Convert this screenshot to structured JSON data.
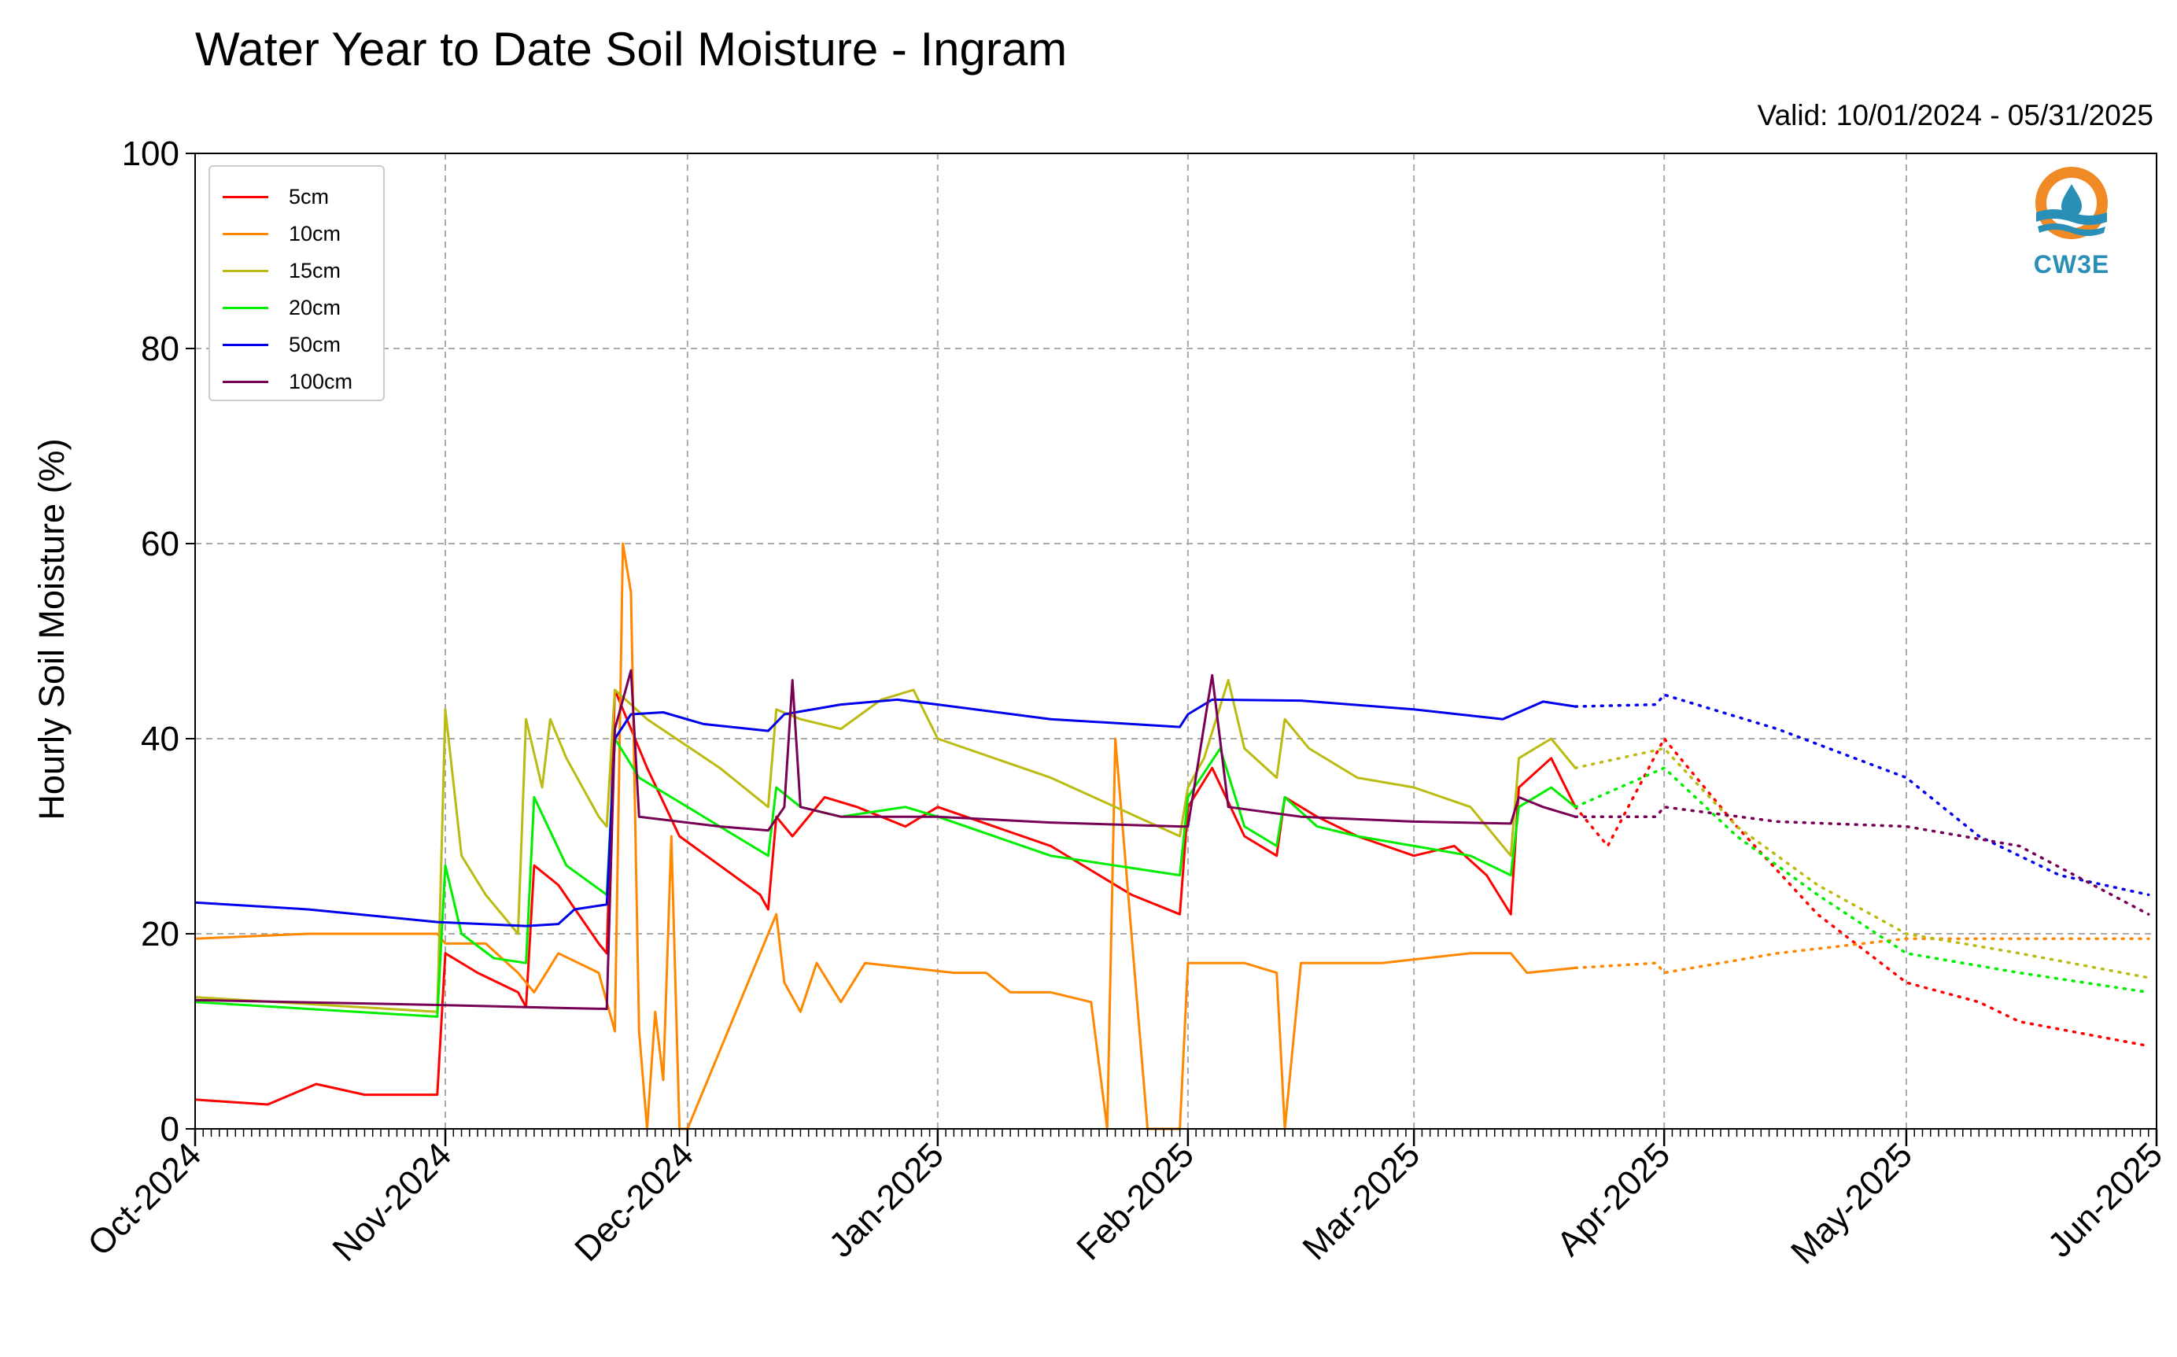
{
  "title": "Water Year to Date Soil Moisture - Ingram",
  "valid": "Valid: 10/01/2024 - 05/31/2025",
  "logo_text": "CW3E",
  "chart_data": {
    "type": "line",
    "title": "Water Year to Date Soil Moisture - Ingram",
    "xlabel": "",
    "ylabel": "Hourly Soil Moisture (%)",
    "ylim": [
      0,
      100
    ],
    "xlim": [
      "2024-10-01",
      "2025-06-01"
    ],
    "yticks": [
      0,
      20,
      40,
      60,
      80,
      100
    ],
    "xticks": [
      {
        "date": "2024-10-01",
        "label": "Oct-2024"
      },
      {
        "date": "2024-11-01",
        "label": "Nov-2024"
      },
      {
        "date": "2024-12-01",
        "label": "Dec-2024"
      },
      {
        "date": "2025-01-01",
        "label": "Jan-2025"
      },
      {
        "date": "2025-02-01",
        "label": "Feb-2025"
      },
      {
        "date": "2025-03-01",
        "label": "Mar-2025"
      },
      {
        "date": "2025-04-01",
        "label": "Apr-2025"
      },
      {
        "date": "2025-05-01",
        "label": "May-2025"
      },
      {
        "date": "2025-06-01",
        "label": "Jun-2025"
      }
    ],
    "grid": true,
    "legend_position": "top-left",
    "series": [
      {
        "name": "5cm",
        "color": "#ff0000",
        "observed": [
          [
            "2024-10-01",
            3
          ],
          [
            "2024-10-10",
            2.5
          ],
          [
            "2024-10-16",
            4.6
          ],
          [
            "2024-10-22",
            3.5
          ],
          [
            "2024-10-31",
            3.5
          ],
          [
            "2024-11-01",
            18
          ],
          [
            "2024-11-05",
            16
          ],
          [
            "2024-11-10",
            14
          ],
          [
            "2024-11-11",
            12.5
          ],
          [
            "2024-11-12",
            27
          ],
          [
            "2024-11-15",
            25
          ],
          [
            "2024-11-20",
            19
          ],
          [
            "2024-11-21",
            18
          ],
          [
            "2024-11-22",
            45
          ],
          [
            "2024-11-26",
            37
          ],
          [
            "2024-11-30",
            30
          ],
          [
            "2024-12-05",
            27
          ],
          [
            "2024-12-10",
            24
          ],
          [
            "2024-12-11",
            22.5
          ],
          [
            "2024-12-12",
            32
          ],
          [
            "2024-12-14",
            30
          ],
          [
            "2024-12-18",
            34
          ],
          [
            "2024-12-22",
            33
          ],
          [
            "2024-12-28",
            31
          ],
          [
            "2025-01-01",
            33
          ],
          [
            "2025-01-15",
            29
          ],
          [
            "2025-01-25",
            24
          ],
          [
            "2025-01-31",
            22
          ],
          [
            "2025-02-01",
            33
          ],
          [
            "2025-02-04",
            37
          ],
          [
            "2025-02-08",
            30
          ],
          [
            "2025-02-12",
            28
          ],
          [
            "2025-02-13",
            34
          ],
          [
            "2025-02-17",
            32
          ],
          [
            "2025-02-22",
            30
          ],
          [
            "2025-03-01",
            28
          ],
          [
            "2025-03-06",
            29
          ],
          [
            "2025-03-10",
            26
          ],
          [
            "2025-03-13",
            22
          ],
          [
            "2025-03-14",
            35
          ],
          [
            "2025-03-18",
            38
          ],
          [
            "2025-03-21",
            33
          ]
        ],
        "forecast": [
          [
            "2025-03-21",
            33
          ],
          [
            "2025-03-25",
            29
          ],
          [
            "2025-04-01",
            40
          ],
          [
            "2025-04-10",
            31
          ],
          [
            "2025-04-20",
            22
          ],
          [
            "2025-05-01",
            15
          ],
          [
            "2025-05-10",
            13
          ],
          [
            "2025-05-15",
            11
          ],
          [
            "2025-05-31",
            8.5
          ]
        ]
      },
      {
        "name": "10cm",
        "color": "#ff8800",
        "observed": [
          [
            "2024-10-01",
            19.5
          ],
          [
            "2024-10-15",
            20
          ],
          [
            "2024-10-31",
            20
          ],
          [
            "2024-11-01",
            19
          ],
          [
            "2024-11-06",
            19
          ],
          [
            "2024-11-10",
            16
          ],
          [
            "2024-11-12",
            14
          ],
          [
            "2024-11-15",
            18
          ],
          [
            "2024-11-20",
            16
          ],
          [
            "2024-11-22",
            10
          ],
          [
            "2024-11-23",
            60
          ],
          [
            "2024-11-24",
            55
          ],
          [
            "2024-11-25",
            10
          ],
          [
            "2024-11-26",
            0
          ],
          [
            "2024-11-27",
            12
          ],
          [
            "2024-11-28",
            5
          ],
          [
            "2024-11-29",
            30
          ],
          [
            "2024-11-30",
            0
          ],
          [
            "2024-12-01",
            0
          ],
          [
            "2024-12-12",
            22
          ],
          [
            "2024-12-13",
            15
          ],
          [
            "2024-12-15",
            12
          ],
          [
            "2024-12-17",
            17
          ],
          [
            "2024-12-20",
            13
          ],
          [
            "2024-12-23",
            17
          ],
          [
            "2025-01-03",
            16
          ],
          [
            "2025-01-07",
            16
          ],
          [
            "2025-01-10",
            14
          ],
          [
            "2025-01-15",
            14
          ],
          [
            "2025-01-20",
            13
          ],
          [
            "2025-01-22",
            0
          ],
          [
            "2025-01-23",
            40
          ],
          [
            "2025-01-25",
            20
          ],
          [
            "2025-01-27",
            0
          ],
          [
            "2025-01-31",
            0
          ],
          [
            "2025-02-01",
            17
          ],
          [
            "2025-02-08",
            17
          ],
          [
            "2025-02-12",
            16
          ],
          [
            "2025-02-13",
            0
          ],
          [
            "2025-02-15",
            17
          ],
          [
            "2025-02-25",
            17
          ],
          [
            "2025-03-08",
            18
          ],
          [
            "2025-03-13",
            18
          ],
          [
            "2025-03-15",
            16
          ],
          [
            "2025-03-21",
            16.5
          ]
        ],
        "forecast": [
          [
            "2025-03-21",
            16.5
          ],
          [
            "2025-03-31",
            17
          ],
          [
            "2025-04-01",
            16
          ],
          [
            "2025-04-15",
            18
          ],
          [
            "2025-05-01",
            19.5
          ],
          [
            "2025-05-31",
            19.5
          ]
        ]
      },
      {
        "name": "15cm",
        "color": "#bbbb11",
        "observed": [
          [
            "2024-10-01",
            13.5
          ],
          [
            "2024-10-31",
            12
          ],
          [
            "2024-11-01",
            43
          ],
          [
            "2024-11-03",
            28
          ],
          [
            "2024-11-06",
            24
          ],
          [
            "2024-11-10",
            20
          ],
          [
            "2024-11-11",
            42
          ],
          [
            "2024-11-13",
            35
          ],
          [
            "2024-11-14",
            42
          ],
          [
            "2024-11-16",
            38
          ],
          [
            "2024-11-20",
            32
          ],
          [
            "2024-11-21",
            31
          ],
          [
            "2024-11-22",
            45
          ],
          [
            "2024-11-26",
            42
          ],
          [
            "2024-12-05",
            37
          ],
          [
            "2024-12-11",
            33
          ],
          [
            "2024-12-12",
            43
          ],
          [
            "2024-12-15",
            42
          ],
          [
            "2024-12-20",
            41
          ],
          [
            "2024-12-25",
            44
          ],
          [
            "2024-12-29",
            45
          ],
          [
            "2025-01-01",
            40
          ],
          [
            "2025-01-15",
            36
          ],
          [
            "2025-01-31",
            30
          ],
          [
            "2025-02-01",
            35
          ],
          [
            "2025-02-03",
            38
          ],
          [
            "2025-02-06",
            46
          ],
          [
            "2025-02-08",
            39
          ],
          [
            "2025-02-12",
            36
          ],
          [
            "2025-02-13",
            42
          ],
          [
            "2025-02-16",
            39
          ],
          [
            "2025-02-22",
            36
          ],
          [
            "2025-03-01",
            35
          ],
          [
            "2025-03-08",
            33
          ],
          [
            "2025-03-13",
            28
          ],
          [
            "2025-03-14",
            38
          ],
          [
            "2025-03-18",
            40
          ],
          [
            "2025-03-21",
            37
          ]
        ],
        "forecast": [
          [
            "2025-03-21",
            37
          ],
          [
            "2025-04-01",
            39
          ],
          [
            "2025-04-10",
            31
          ],
          [
            "2025-04-20",
            25
          ],
          [
            "2025-05-01",
            20
          ],
          [
            "2025-05-15",
            18
          ],
          [
            "2025-05-31",
            15.5
          ]
        ]
      },
      {
        "name": "20cm",
        "color": "#00ee00",
        "observed": [
          [
            "2024-10-01",
            13
          ],
          [
            "2024-10-31",
            11.5
          ],
          [
            "2024-11-01",
            27
          ],
          [
            "2024-11-03",
            20
          ],
          [
            "2024-11-07",
            17.5
          ],
          [
            "2024-11-11",
            17
          ],
          [
            "2024-11-12",
            34
          ],
          [
            "2024-11-16",
            27
          ],
          [
            "2024-11-21",
            24
          ],
          [
            "2024-11-22",
            40
          ],
          [
            "2024-11-25",
            36
          ],
          [
            "2024-12-05",
            31
          ],
          [
            "2024-12-11",
            28
          ],
          [
            "2024-12-12",
            35
          ],
          [
            "2024-12-15",
            33
          ],
          [
            "2024-12-20",
            32
          ],
          [
            "2024-12-28",
            33
          ],
          [
            "2025-01-01",
            32
          ],
          [
            "2025-01-15",
            28
          ],
          [
            "2025-01-31",
            26
          ],
          [
            "2025-02-01",
            34
          ],
          [
            "2025-02-05",
            39
          ],
          [
            "2025-02-08",
            31
          ],
          [
            "2025-02-12",
            29
          ],
          [
            "2025-02-13",
            34
          ],
          [
            "2025-02-17",
            31
          ],
          [
            "2025-02-22",
            30
          ],
          [
            "2025-03-01",
            29
          ],
          [
            "2025-03-08",
            28
          ],
          [
            "2025-03-13",
            26
          ],
          [
            "2025-03-14",
            33
          ],
          [
            "2025-03-18",
            35
          ],
          [
            "2025-03-21",
            33
          ]
        ],
        "forecast": [
          [
            "2025-03-21",
            33
          ],
          [
            "2025-04-01",
            37
          ],
          [
            "2025-04-10",
            30
          ],
          [
            "2025-04-20",
            24
          ],
          [
            "2025-05-01",
            18
          ],
          [
            "2025-05-15",
            16
          ],
          [
            "2025-05-31",
            14
          ]
        ]
      },
      {
        "name": "50cm",
        "color": "#0000ee",
        "observed": [
          [
            "2024-10-01",
            23.2
          ],
          [
            "2024-10-15",
            22.5
          ],
          [
            "2024-10-31",
            21.2
          ],
          [
            "2024-11-11",
            20.8
          ],
          [
            "2024-11-15",
            21
          ],
          [
            "2024-11-17",
            22.5
          ],
          [
            "2024-11-21",
            23
          ],
          [
            "2024-11-22",
            40
          ],
          [
            "2024-11-24",
            42.5
          ],
          [
            "2024-11-28",
            42.7
          ],
          [
            "2024-12-03",
            41.5
          ],
          [
            "2024-12-11",
            40.8
          ],
          [
            "2024-12-13",
            42.5
          ],
          [
            "2024-12-20",
            43.5
          ],
          [
            "2024-12-27",
            44
          ],
          [
            "2025-01-01",
            43.5
          ],
          [
            "2025-01-15",
            42
          ],
          [
            "2025-01-31",
            41.2
          ],
          [
            "2025-02-01",
            42.5
          ],
          [
            "2025-02-04",
            44
          ],
          [
            "2025-02-15",
            43.9
          ],
          [
            "2025-03-01",
            43
          ],
          [
            "2025-03-12",
            42
          ],
          [
            "2025-03-17",
            43.8
          ],
          [
            "2025-03-21",
            43.3
          ]
        ],
        "forecast": [
          [
            "2025-03-21",
            43.3
          ],
          [
            "2025-03-31",
            43.5
          ],
          [
            "2025-04-01",
            44.5
          ],
          [
            "2025-04-15",
            41
          ],
          [
            "2025-05-01",
            36
          ],
          [
            "2025-05-10",
            30
          ],
          [
            "2025-05-20",
            26
          ],
          [
            "2025-05-31",
            24
          ]
        ]
      },
      {
        "name": "100cm",
        "color": "#770055",
        "observed": [
          [
            "2024-10-01",
            13.2
          ],
          [
            "2024-10-31",
            12.7
          ],
          [
            "2024-11-15",
            12.4
          ],
          [
            "2024-11-21",
            12.3
          ],
          [
            "2024-11-22",
            41
          ],
          [
            "2024-11-24",
            47
          ],
          [
            "2024-11-25",
            32
          ],
          [
            "2024-12-05",
            31
          ],
          [
            "2024-12-11",
            30.6
          ],
          [
            "2024-12-13",
            33
          ],
          [
            "2024-12-14",
            46
          ],
          [
            "2024-12-15",
            33
          ],
          [
            "2024-12-20",
            32
          ],
          [
            "2025-01-01",
            32
          ],
          [
            "2025-01-15",
            31.4
          ],
          [
            "2025-01-31",
            31
          ],
          [
            "2025-02-01",
            31
          ],
          [
            "2025-02-04",
            46.5
          ],
          [
            "2025-02-06",
            33
          ],
          [
            "2025-02-15",
            32
          ],
          [
            "2025-03-01",
            31.5
          ],
          [
            "2025-03-13",
            31.3
          ],
          [
            "2025-03-14",
            34
          ],
          [
            "2025-03-17",
            33
          ],
          [
            "2025-03-21",
            32
          ]
        ],
        "forecast": [
          [
            "2025-03-21",
            32
          ],
          [
            "2025-03-31",
            32
          ],
          [
            "2025-04-01",
            33
          ],
          [
            "2025-04-15",
            31.5
          ],
          [
            "2025-05-01",
            31
          ],
          [
            "2025-05-15",
            29
          ],
          [
            "2025-05-31",
            22
          ]
        ]
      }
    ]
  }
}
